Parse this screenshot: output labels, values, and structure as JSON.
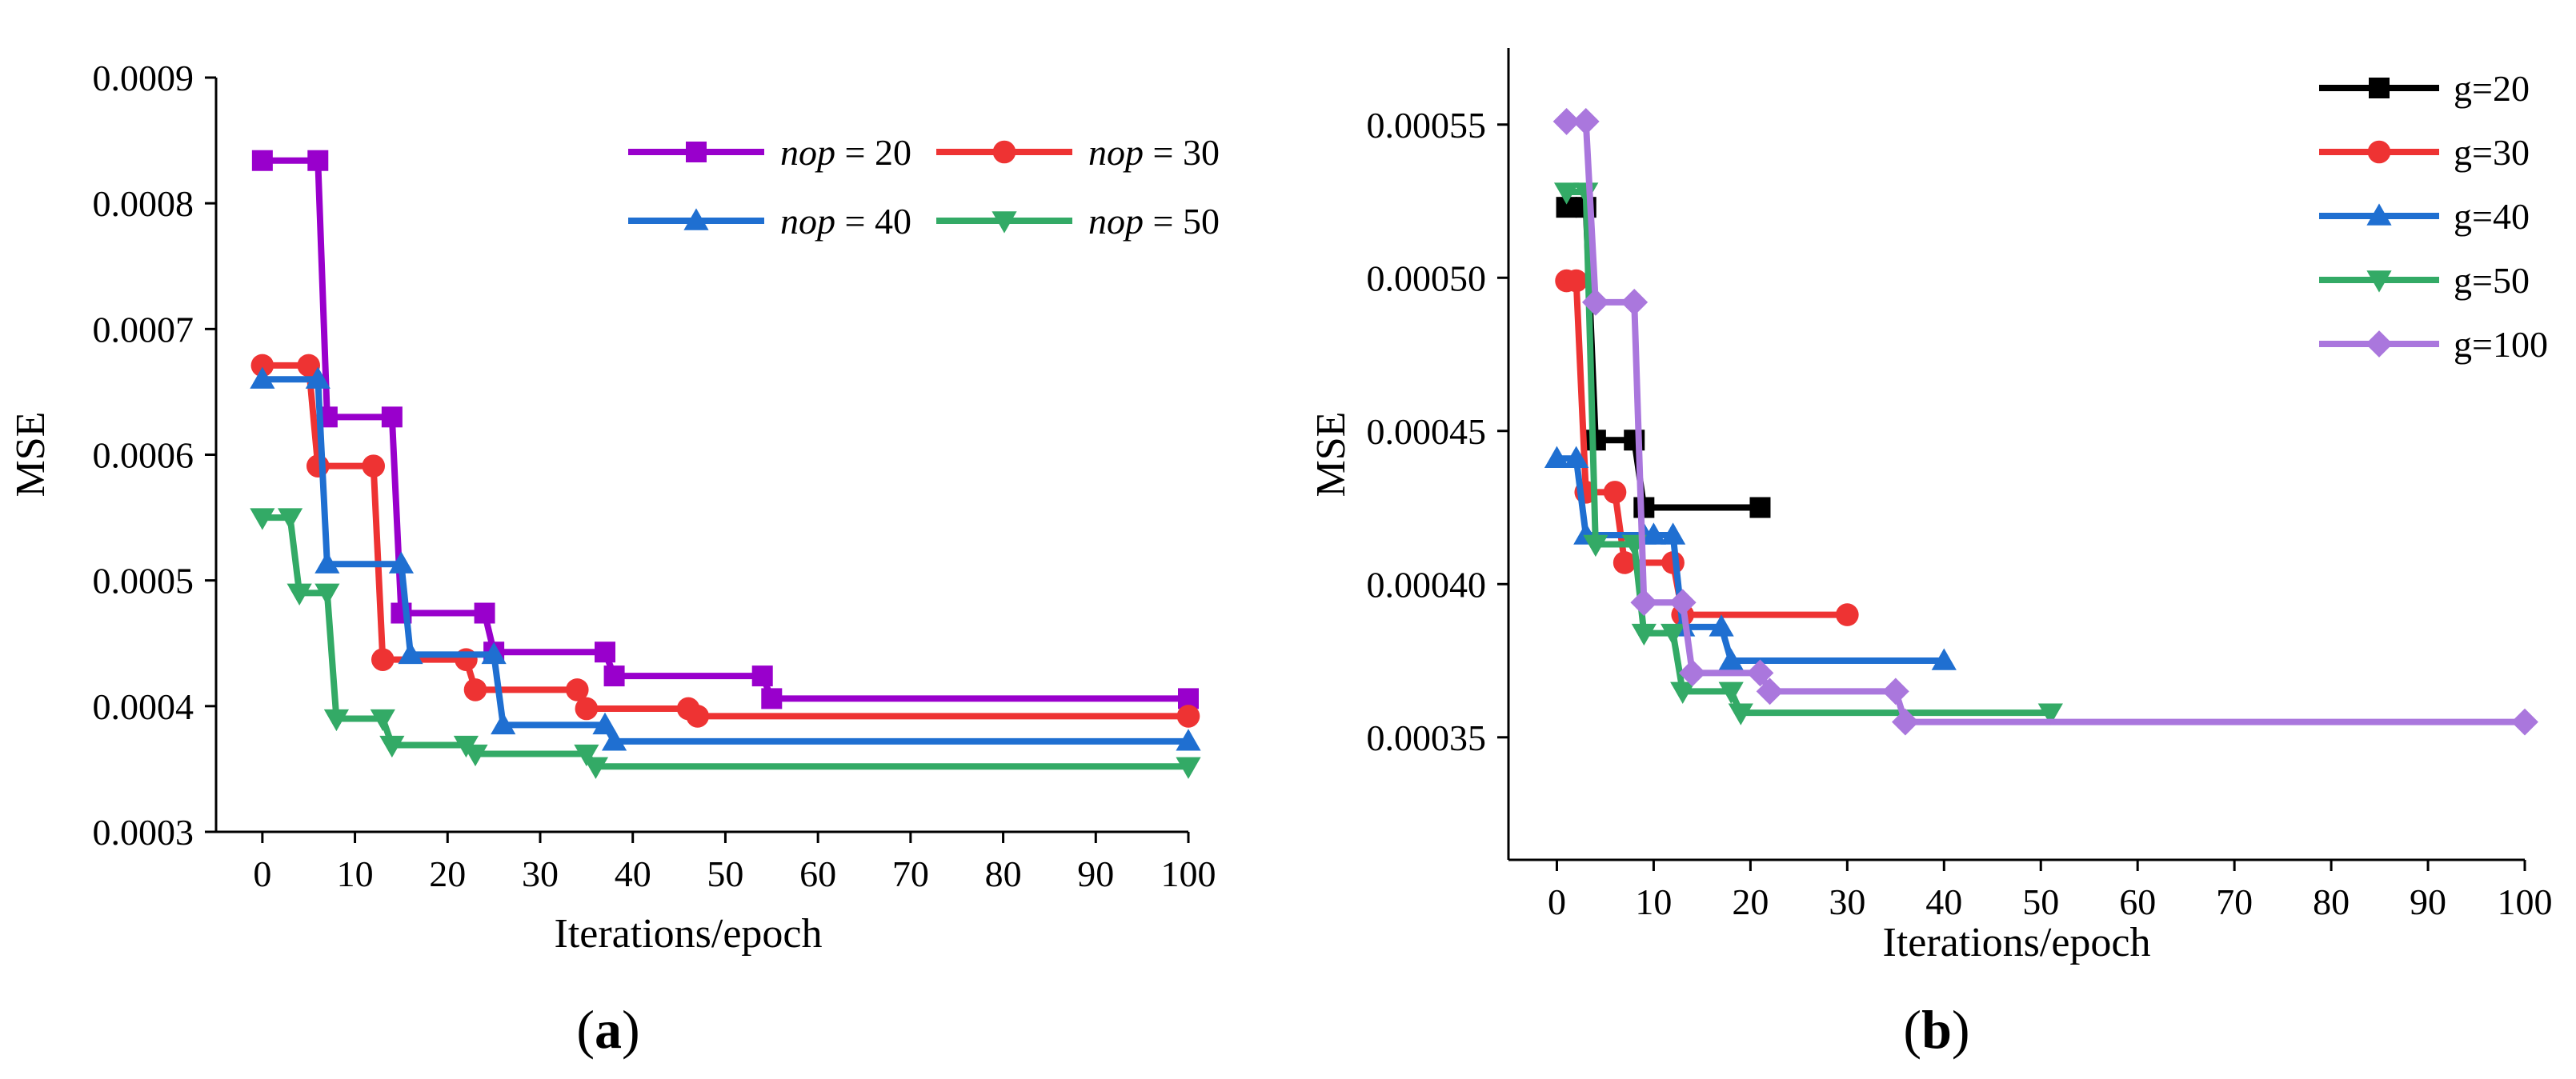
{
  "chart_data": [
    {
      "panel_label": "a",
      "type": "line",
      "step": true,
      "xlabel": "Iterations/epoch",
      "ylabel": "MSE",
      "xlim": [
        -5,
        100
      ],
      "ylim": [
        0.0003,
        0.0009
      ],
      "xticks": [
        0,
        10,
        20,
        30,
        40,
        50,
        60,
        70,
        80,
        90,
        100
      ],
      "xtick_labels": [
        "0",
        "10",
        "20",
        "30",
        "40",
        "50",
        "60",
        "70",
        "80",
        "90",
        "100"
      ],
      "yticks": [
        0.0003,
        0.0004,
        0.0005,
        0.0006,
        0.0007,
        0.0008,
        0.0009
      ],
      "ytick_labels": [
        "0.0003",
        "0.0004",
        "0.0005",
        "0.0006",
        "0.0007",
        "0.0008",
        "0.0009"
      ],
      "legend_position": "top-right",
      "series": [
        {
          "name_var": "nop",
          "name_rest": " = 20",
          "color": "#9900cc",
          "marker": "square",
          "x": [
            0,
            6,
            7,
            14,
            15,
            24,
            25,
            37,
            38,
            54,
            55,
            100
          ],
          "y": [
            0.000834,
            0.000834,
            0.00063,
            0.00063,
            0.000474,
            0.000474,
            0.000443,
            0.000443,
            0.000424,
            0.000424,
            0.000406,
            0.000406
          ]
        },
        {
          "name_var": "nop",
          "name_rest": " = 30",
          "color": "#ee3333",
          "marker": "circle",
          "x": [
            0,
            5,
            6,
            12,
            13,
            22,
            23,
            34,
            35,
            46,
            47,
            100
          ],
          "y": [
            0.000671,
            0.000671,
            0.000591,
            0.000591,
            0.000437,
            0.000437,
            0.000413,
            0.000413,
            0.000398,
            0.000398,
            0.000392,
            0.000392
          ]
        },
        {
          "name_var": "nop",
          "name_rest": " = 40",
          "color": "#1f6fd1",
          "marker": "triangle-up",
          "x": [
            0,
            6,
            7,
            15,
            16,
            25,
            26,
            37,
            38,
            100
          ],
          "y": [
            0.00066,
            0.00066,
            0.000513,
            0.000513,
            0.000441,
            0.000441,
            0.000385,
            0.000385,
            0.000372,
            0.000372
          ]
        },
        {
          "name_var": "nop",
          "name_rest": " = 50",
          "color": "#33aa66",
          "marker": "triangle-down",
          "x": [
            0,
            3,
            4,
            7,
            8,
            13,
            14,
            22,
            23,
            35,
            36,
            100
          ],
          "y": [
            0.00055,
            0.00055,
            0.00049,
            0.00049,
            0.00039,
            0.00039,
            0.000369,
            0.000369,
            0.000362,
            0.000362,
            0.000352,
            0.000352
          ]
        }
      ]
    },
    {
      "panel_label": "b",
      "type": "line",
      "step": true,
      "xlabel": "Iterations/epoch",
      "ylabel": "MSE",
      "xlim": [
        -5,
        100
      ],
      "ylim": [
        0.00031,
        0.000575
      ],
      "xticks": [
        0,
        10,
        20,
        30,
        40,
        50,
        60,
        70,
        80,
        90,
        100
      ],
      "xtick_labels": [
        "0",
        "10",
        "20",
        "30",
        "40",
        "50",
        "60",
        "70",
        "80",
        "90",
        "100"
      ],
      "yticks": [
        0.00035,
        0.0004,
        0.00045,
        0.0005,
        0.00055
      ],
      "ytick_labels": [
        "0.00035",
        "0.00040",
        "0.00045",
        "0.00050",
        "0.00055"
      ],
      "legend_position": "top-right",
      "series": [
        {
          "name": "g=20",
          "color": "#000000",
          "marker": "square",
          "x": [
            1,
            3,
            4,
            8,
            9,
            21
          ],
          "y": [
            0.000523,
            0.000523,
            0.000447,
            0.000447,
            0.000425,
            0.000425
          ]
        },
        {
          "name": "g=30",
          "color": "#ee3333",
          "marker": "circle",
          "x": [
            1,
            2,
            3,
            6,
            7,
            12,
            13,
            30
          ],
          "y": [
            0.000499,
            0.000499,
            0.00043,
            0.00043,
            0.000407,
            0.000407,
            0.00039,
            0.00039
          ]
        },
        {
          "name": "g=40",
          "color": "#1f6fd1",
          "marker": "triangle-up",
          "x": [
            0,
            2,
            3,
            9,
            10,
            12,
            13,
            17,
            18,
            40
          ],
          "y": [
            0.000441,
            0.000441,
            0.000416,
            0.000416,
            0.000416,
            0.000416,
            0.000386,
            0.000386,
            0.000375,
            0.000375
          ]
        },
        {
          "name": "g=50",
          "color": "#33aa66",
          "marker": "triangle-down",
          "x": [
            1,
            3,
            4,
            8,
            9,
            12,
            13,
            18,
            19,
            51
          ],
          "y": [
            0.000528,
            0.000528,
            0.000413,
            0.000413,
            0.000384,
            0.000384,
            0.000365,
            0.000365,
            0.000358,
            0.000358
          ]
        },
        {
          "name": "g=100",
          "color": "#aa77dd",
          "marker": "diamond",
          "x": [
            1,
            3,
            4,
            8,
            9,
            13,
            14,
            21,
            22,
            35,
            36,
            100
          ],
          "y": [
            0.000551,
            0.000551,
            0.000492,
            0.000492,
            0.000394,
            0.000394,
            0.000371,
            0.000371,
            0.000365,
            0.000365,
            0.000355,
            0.000355
          ]
        }
      ]
    }
  ]
}
